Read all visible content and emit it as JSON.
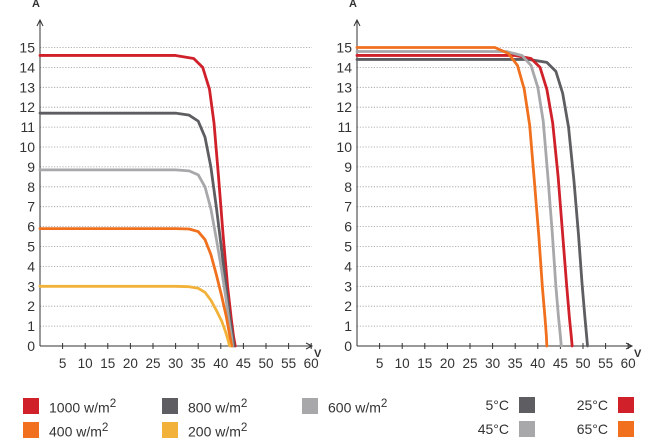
{
  "chart_data": [
    {
      "type": "line",
      "ylabel": "A",
      "xlabel": "V",
      "xlim": [
        0,
        61
      ],
      "ylim": [
        0,
        15.5
      ],
      "x_ticks": [
        5,
        10,
        15,
        20,
        25,
        30,
        35,
        40,
        45,
        50,
        55,
        60
      ],
      "y_ticks": [
        0,
        1,
        2,
        3,
        4,
        5,
        6,
        7,
        8,
        9,
        10,
        11,
        12,
        13,
        14,
        15
      ],
      "grid": "horizontal dotted",
      "series": [
        {
          "name": "1000 w/m²",
          "color": "#d0202a",
          "x": [
            0,
            20,
            30,
            34,
            36,
            37.5,
            38.5,
            39.5,
            40.5,
            41.5,
            42.3,
            42.8,
            43.2
          ],
          "y": [
            14.6,
            14.6,
            14.6,
            14.45,
            14.0,
            12.9,
            11.2,
            8.5,
            5.6,
            3.0,
            1.4,
            0.5,
            0
          ]
        },
        {
          "name": "800 w/m²",
          "color": "#5e5e62",
          "x": [
            0,
            20,
            30,
            33,
            35,
            36.5,
            37.8,
            39,
            40.2,
            41.2,
            42.0,
            42.6,
            42.9
          ],
          "y": [
            11.7,
            11.7,
            11.7,
            11.6,
            11.3,
            10.5,
            9.0,
            7.0,
            4.8,
            2.9,
            1.4,
            0.5,
            0
          ]
        },
        {
          "name": "600 w/m²",
          "color": "#a8a8aa",
          "x": [
            0,
            20,
            30,
            33,
            35,
            36.5,
            37.8,
            39,
            40.2,
            41.2,
            41.9,
            42.4,
            42.6
          ],
          "y": [
            8.85,
            8.85,
            8.85,
            8.8,
            8.6,
            8.0,
            6.9,
            5.4,
            3.8,
            2.3,
            1.1,
            0.4,
            0
          ]
        },
        {
          "name": "400 w/m²",
          "color": "#f0701e",
          "x": [
            0,
            20,
            30,
            33,
            35,
            36.5,
            37.8,
            39,
            40.2,
            41.2,
            41.8,
            42.2,
            42.4
          ],
          "y": [
            5.9,
            5.9,
            5.9,
            5.88,
            5.75,
            5.35,
            4.6,
            3.6,
            2.5,
            1.5,
            0.75,
            0.25,
            0
          ]
        },
        {
          "name": "200 w/m²",
          "color": "#f2b23a",
          "x": [
            0,
            20,
            30,
            33,
            35,
            36.5,
            37.8,
            39,
            40.2,
            41.0,
            41.5,
            41.8,
            42.0
          ],
          "y": [
            3.0,
            3.0,
            3.0,
            2.98,
            2.9,
            2.7,
            2.3,
            1.8,
            1.25,
            0.75,
            0.38,
            0.12,
            0
          ]
        }
      ]
    },
    {
      "type": "line",
      "ylabel": "A",
      "xlabel": "V",
      "xlim": [
        0,
        61
      ],
      "ylim": [
        0,
        15.5
      ],
      "x_ticks": [
        5,
        10,
        15,
        20,
        25,
        30,
        35,
        40,
        45,
        50,
        55,
        60
      ],
      "y_ticks": [
        0,
        1,
        2,
        3,
        4,
        5,
        6,
        7,
        8,
        9,
        10,
        11,
        12,
        13,
        14,
        15
      ],
      "grid": "horizontal dotted",
      "series": [
        {
          "name": "5°C",
          "color": "#5e5e62",
          "x": [
            0,
            30,
            38,
            42,
            44,
            45.5,
            46.8,
            48,
            49,
            49.8,
            50.4,
            50.8,
            51.0
          ],
          "y": [
            14.4,
            14.4,
            14.4,
            14.25,
            13.8,
            12.7,
            11.0,
            8.3,
            5.6,
            3.1,
            1.5,
            0.5,
            0
          ]
        },
        {
          "name": "25°C",
          "color": "#d0202a",
          "x": [
            0,
            28,
            35,
            38.5,
            40.5,
            42,
            43.3,
            44.5,
            45.5,
            46.4,
            47.0,
            47.4,
            47.6
          ],
          "y": [
            14.6,
            14.6,
            14.6,
            14.45,
            14.0,
            12.9,
            11.2,
            8.5,
            5.6,
            3.0,
            1.4,
            0.5,
            0
          ]
        },
        {
          "name": "45°C",
          "color": "#a8a8aa",
          "x": [
            0,
            26,
            33,
            36.5,
            38.5,
            40,
            41.2,
            42.2,
            43.2,
            44.0,
            44.6,
            45.0,
            45.2
          ],
          "y": [
            14.8,
            14.8,
            14.8,
            14.6,
            14.1,
            13.0,
            11.3,
            8.6,
            5.7,
            3.0,
            1.4,
            0.5,
            0
          ]
        },
        {
          "name": "65°C",
          "color": "#f0701e",
          "x": [
            0,
            25,
            30.5,
            33.5,
            35.5,
            37,
            38.2,
            39.2,
            40.2,
            41.0,
            41.6,
            41.9,
            42.0
          ],
          "y": [
            15.0,
            15.0,
            15.0,
            14.7,
            14.1,
            12.9,
            11.1,
            8.4,
            5.6,
            3.0,
            1.4,
            0.5,
            0
          ]
        }
      ]
    }
  ],
  "legend": {
    "irradiance": [
      {
        "label": "1000 w/m",
        "sup": "2",
        "color": "#d0202a"
      },
      {
        "label": "800 w/m",
        "sup": "2",
        "color": "#5e5e62"
      },
      {
        "label": "600 w/m",
        "sup": "2",
        "color": "#a8a8aa"
      },
      {
        "label": "400 w/m",
        "sup": "2",
        "color": "#f0701e"
      },
      {
        "label": "200 w/m",
        "sup": "2",
        "color": "#f2b23a"
      }
    ],
    "temperature": [
      {
        "label": "5°C",
        "color": "#5e5e62"
      },
      {
        "label": "25°C",
        "color": "#d0202a"
      },
      {
        "label": "45°C",
        "color": "#a8a8aa"
      },
      {
        "label": "65°C",
        "color": "#f0701e"
      }
    ]
  }
}
